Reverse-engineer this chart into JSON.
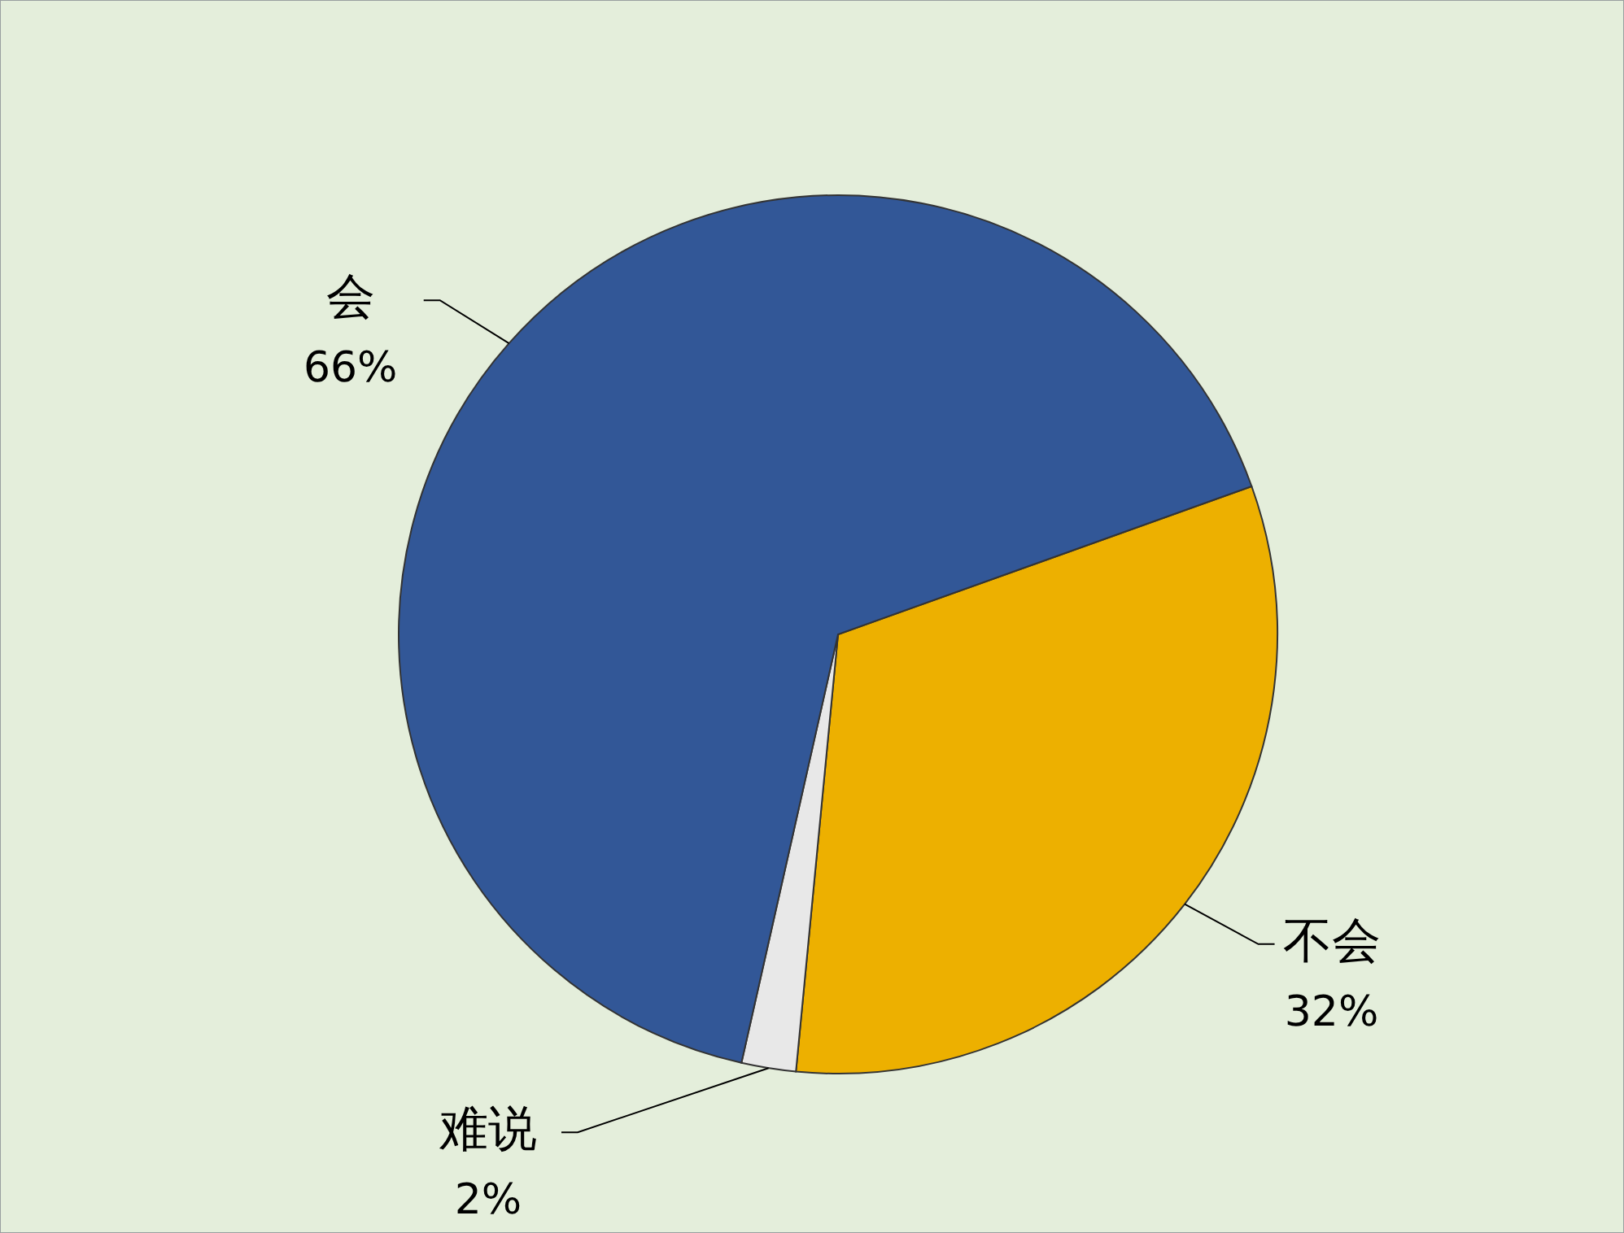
{
  "chart_data": {
    "type": "pie",
    "categories": [
      "不会",
      "难说",
      "会"
    ],
    "values": [
      32,
      2,
      66
    ],
    "colors": [
      "#edb000",
      "#e8e8e8",
      "#325797"
    ],
    "legend": false,
    "value_labels": [
      "32%",
      "2%",
      "66%"
    ]
  }
}
